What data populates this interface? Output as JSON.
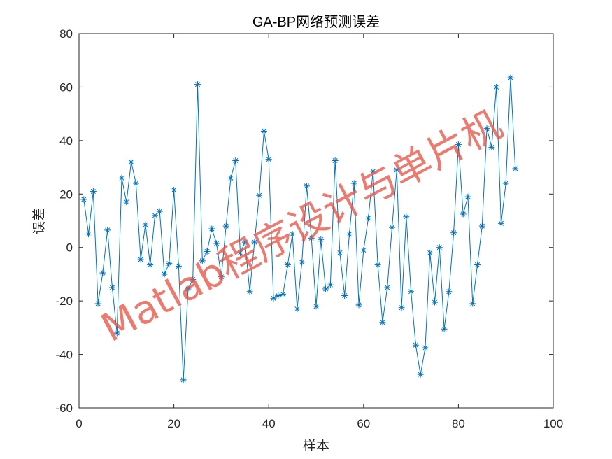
{
  "colors": {
    "series": "#0072BD",
    "axis": "#262626",
    "watermark": "#E85546"
  },
  "watermark": {
    "text": "Matlab程序设计与单片机"
  },
  "chart_data": {
    "type": "line",
    "title": "GA-BP网络预测误差",
    "xlabel": "样本",
    "ylabel": "误差",
    "xlim": [
      0,
      100
    ],
    "ylim": [
      -60,
      80
    ],
    "xticks": [
      0,
      20,
      40,
      60,
      80,
      100
    ],
    "yticks": [
      -60,
      -40,
      -20,
      0,
      20,
      40,
      60,
      80
    ],
    "grid": false,
    "marker": "asterisk",
    "series": [
      {
        "values": [
          18,
          5,
          21,
          -21,
          -9.5,
          6.5,
          -15,
          -32,
          26,
          17,
          32,
          24,
          -4.5,
          8.5,
          -6.5,
          12,
          13.5,
          -10,
          -6,
          21.5,
          -7,
          -49.5,
          -15.5,
          -12,
          61,
          -5,
          -1.5,
          7,
          1.5,
          -11,
          8,
          26,
          32.5,
          -2,
          2,
          -16.5,
          2,
          19.5,
          43.5,
          33,
          -19,
          -18,
          -17.5,
          -6.5,
          5,
          -23,
          -5.5,
          23,
          3.5,
          -22,
          3,
          -15.5,
          -14,
          32.5,
          -2,
          -18,
          5,
          24,
          -21.5,
          -1,
          11,
          28.5,
          -6.5,
          -28,
          -15,
          7.5,
          29,
          -22.5,
          11.5,
          -16.5,
          -36.5,
          -47.5,
          -37.5,
          -2,
          -20.5,
          0,
          -30.5,
          -16.5,
          5.5,
          38.5,
          12.5,
          19,
          -21,
          -6.5,
          8,
          44.5,
          37.5,
          60,
          9,
          24,
          63.5,
          29.5
        ]
      }
    ]
  }
}
